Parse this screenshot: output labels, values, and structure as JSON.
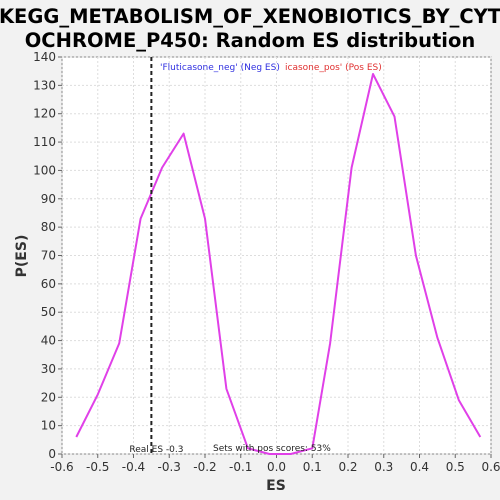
{
  "chart_data": {
    "type": "line",
    "title_line1": "KEGG_METABOLISM_OF_XENOBIOTICS_BY_CYT",
    "title_line2": "OCHROME_P450: Random ES distribution",
    "xlabel": "ES",
    "ylabel": "P(ES)",
    "xlim": [
      -0.6,
      0.6
    ],
    "ylim": [
      0,
      140
    ],
    "xticks": [
      -0.6,
      -0.5,
      -0.4,
      -0.3,
      -0.2,
      -0.1,
      0.0,
      0.1,
      0.2,
      0.3,
      0.4,
      0.5,
      0.6
    ],
    "xtick_labels": [
      "-0.6",
      "-0.5",
      "-0.4",
      "-0.3",
      "-0.2",
      "-0.1",
      "0.0",
      "0.1",
      "0.2",
      "0.3",
      "0.4",
      "0.5",
      "0.6"
    ],
    "yticks": [
      0,
      10,
      20,
      30,
      40,
      50,
      60,
      70,
      80,
      90,
      100,
      110,
      120,
      130,
      140
    ],
    "ytick_labels": [
      "0",
      "10",
      "20",
      "30",
      "40",
      "50",
      "60",
      "70",
      "80",
      "90",
      "100",
      "110",
      "120",
      "130",
      "140"
    ],
    "grid": true,
    "series": [
      {
        "color": "#e040e8",
        "x": [
          -0.56,
          -0.5,
          -0.44,
          -0.38,
          -0.32,
          -0.26,
          -0.2,
          -0.14,
          -0.08,
          -0.02,
          0.04,
          0.1,
          0.15,
          0.21,
          0.27,
          0.33,
          0.39,
          0.45,
          0.51,
          0.57
        ],
        "y": [
          6,
          21,
          39,
          83,
          101,
          113,
          83,
          23,
          2,
          0,
          0,
          2,
          39,
          101,
          134,
          119,
          70,
          41,
          19,
          6
        ]
      }
    ],
    "real_es": -0.35,
    "real_es_label": "Real ES -0.3",
    "pos_scores_label": "Sets with pos scores: 53%",
    "legend_neg": "'Fluticasone_neg' (Neg ES)",
    "legend_pos": "icasone_pos' (Pos ES)",
    "legend_neg_color": "#3030e0",
    "legend_pos_color": "#e03030"
  }
}
